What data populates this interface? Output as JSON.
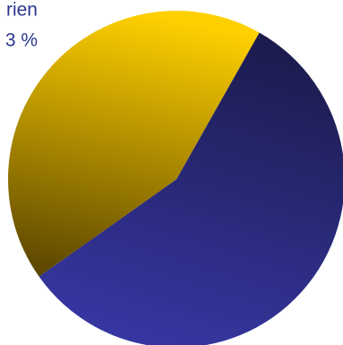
{
  "chart_data": {
    "type": "pie",
    "values": [
      57,
      43
    ],
    "colors": [
      "#2e2e8e",
      "#e8b800"
    ],
    "annotations": [
      "rien",
      "3 %"
    ]
  }
}
